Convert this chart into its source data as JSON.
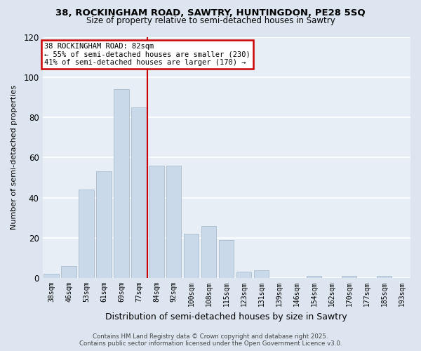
{
  "title_line1": "38, ROCKINGHAM ROAD, SAWTRY, HUNTINGDON, PE28 5SQ",
  "title_line2": "Size of property relative to semi-detached houses in Sawtry",
  "xlabel": "Distribution of semi-detached houses by size in Sawtry",
  "ylabel": "Number of semi-detached properties",
  "bar_labels": [
    "38sqm",
    "46sqm",
    "53sqm",
    "61sqm",
    "69sqm",
    "77sqm",
    "84sqm",
    "92sqm",
    "100sqm",
    "108sqm",
    "115sqm",
    "123sqm",
    "131sqm",
    "139sqm",
    "146sqm",
    "154sqm",
    "162sqm",
    "170sqm",
    "177sqm",
    "185sqm",
    "193sqm"
  ],
  "bar_values": [
    2,
    6,
    44,
    53,
    94,
    85,
    56,
    56,
    22,
    26,
    19,
    3,
    4,
    0,
    0,
    1,
    0,
    1,
    0,
    1,
    0
  ],
  "bar_color": "#c9d9e9",
  "bar_edge_color": "#aabcce",
  "vline_x": 5.5,
  "vline_color": "#cc0000",
  "ylim": [
    0,
    120
  ],
  "yticks": [
    0,
    20,
    40,
    60,
    80,
    100,
    120
  ],
  "annotation_title": "38 ROCKINGHAM ROAD: 82sqm",
  "annotation_line2": "← 55% of semi-detached houses are smaller (230)",
  "annotation_line3": "41% of semi-detached houses are larger (170) →",
  "annotation_box_color": "#cc0000",
  "footer_line1": "Contains HM Land Registry data © Crown copyright and database right 2025.",
  "footer_line2": "Contains public sector information licensed under the Open Government Licence v3.0.",
  "bg_color": "#dde6f0",
  "plot_bg_color": "#e8eef5"
}
